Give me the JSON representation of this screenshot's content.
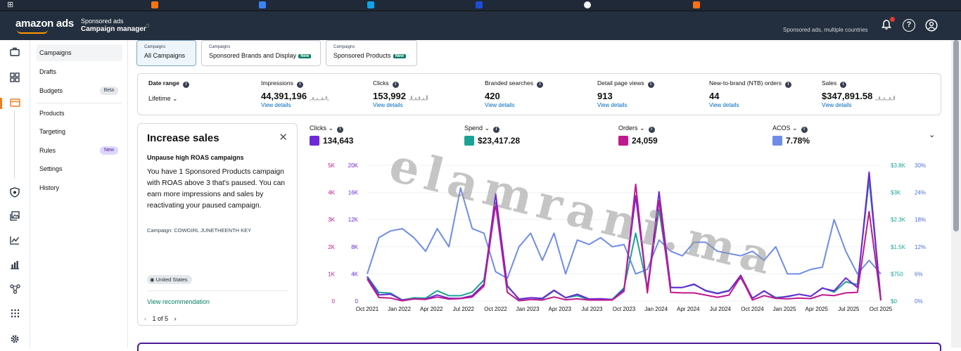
{
  "header": {
    "logo_text": "amazon ads",
    "app_line1": "Sponsored ads",
    "app_line2": "Campaign manager",
    "account_text": "Sponsored ads, multiple countries",
    "help_glyph": "?"
  },
  "sidebar": {
    "items": [
      {
        "label": "Campaigns"
      },
      {
        "label": "Drafts"
      },
      {
        "label": "Budgets",
        "badge": "Beta"
      },
      {
        "label": "Products"
      },
      {
        "label": "Targeting"
      },
      {
        "label": "Rules",
        "badge": "New"
      },
      {
        "label": "Settings"
      },
      {
        "label": "History"
      }
    ]
  },
  "tabs": [
    {
      "small": "Campaigns",
      "label": "All Campaigns"
    },
    {
      "small": "Campaigns",
      "label": "Sponsored Brands and Display",
      "tag": "New"
    },
    {
      "small": "Campaigns",
      "label": "Sponsored Products",
      "tag": "New"
    }
  ],
  "metrics": {
    "date_range": {
      "label": "Date range",
      "value": "Lifetime"
    },
    "items": [
      {
        "label": "Impressions",
        "value": "44,391,196",
        "link": "View details"
      },
      {
        "label": "Clicks",
        "value": "153,992",
        "link": "View details"
      },
      {
        "label": "Branded searches",
        "value": "420",
        "link": "View details"
      },
      {
        "label": "Detail page views",
        "value": "913",
        "link": "View details"
      },
      {
        "label": "New-to-brand (NTB) orders",
        "value": "44",
        "link": "View details"
      },
      {
        "label": "Sales",
        "value": "$347,891.58",
        "link": "View details"
      }
    ]
  },
  "recommendation": {
    "title": "Increase sales",
    "subtitle": "Unpause high ROAS campaigns",
    "body": "You have 1 Sponsored Products campaign with ROAS above 3 that's paused. You can earn more impressions and sales by reactivating your paused campaign.",
    "campaign": "Campaign: COWGIRL JUNETHEENTH KEY",
    "region": "United States",
    "action": "View recommendation",
    "pager": "1 of 5"
  },
  "chart_selectors": [
    {
      "label": "Clicks",
      "value": "134,643",
      "color": "#6d28d9"
    },
    {
      "label": "Spend",
      "value": "$23,417.28",
      "color": "#1aa394"
    },
    {
      "label": "Orders",
      "value": "24,059",
      "color": "#c2188f"
    },
    {
      "label": "ACOS",
      "value": "7.78%",
      "color": "#6f8ce8"
    }
  ],
  "watermark": "elamrani.ma",
  "chart_data": {
    "type": "line",
    "x_labels": [
      "Oct 2021",
      "Jan 2022",
      "Apr 2022",
      "Jul 2022",
      "Oct 2022",
      "Jan 2023",
      "Apr 2023",
      "Jul 2023",
      "Oct 2023",
      "Jan 2024",
      "Apr 2024",
      "Jul 2024",
      "Oct 2024",
      "Jan 2025",
      "Apr 2025",
      "Jul 2025",
      "Oct 2025"
    ],
    "axes": {
      "orders_left": {
        "ticks": [
          "0",
          "1K",
          "2K",
          "3K",
          "4K",
          "5K"
        ],
        "color": "#c2188f",
        "range": [
          0,
          5000
        ]
      },
      "clicks_left": {
        "ticks": [
          "0",
          "4K",
          "8K",
          "12K",
          "16K",
          "20K"
        ],
        "color": "#6d28d9",
        "range": [
          0,
          20000
        ]
      },
      "spend_right": {
        "ticks": [
          "$0",
          "$750",
          "$1.5K",
          "$2.3K",
          "$3K",
          "$3.8K"
        ],
        "color": "#1aa394",
        "range": [
          0,
          3800
        ]
      },
      "acos_right": {
        "ticks": [
          "0%",
          "6%",
          "12%",
          "18%",
          "24%",
          "30%"
        ],
        "color": "#4f6fd8",
        "range": [
          0,
          30
        ]
      }
    },
    "series": [
      {
        "name": "Clicks",
        "color": "#6d28d9",
        "axis": "clicks_left",
        "values": [
          3500,
          900,
          1000,
          150,
          300,
          300,
          900,
          400,
          400,
          800,
          2500,
          15800,
          2200,
          300,
          500,
          400,
          1600,
          500,
          1000,
          300,
          350,
          200,
          1700,
          15500,
          1500,
          16100,
          2000,
          2000,
          2500,
          1500,
          1100,
          1500,
          3800,
          400,
          1500,
          400,
          700,
          1000,
          700,
          1900,
          1500,
          3400,
          2000,
          19000,
          200
        ]
      },
      {
        "name": "Spend",
        "color": "#1aa394",
        "axis": "spend_right",
        "values": [
          690,
          240,
          220,
          30,
          90,
          80,
          290,
          150,
          150,
          250,
          590,
          2750,
          440,
          40,
          90,
          60,
          290,
          90,
          150,
          40,
          60,
          50,
          370,
          1900,
          380,
          2560,
          380,
          380,
          460,
          300,
          220,
          300,
          650,
          80,
          280,
          100,
          120,
          190,
          130,
          370,
          250,
          540,
          460,
          3400,
          40
        ]
      },
      {
        "name": "Orders",
        "color": "#c2188f",
        "axis": "orders_left",
        "values": [
          810,
          130,
          110,
          10,
          80,
          60,
          150,
          70,
          90,
          150,
          550,
          3580,
          320,
          10,
          60,
          40,
          150,
          50,
          80,
          40,
          40,
          40,
          360,
          4300,
          300,
          3700,
          320,
          300,
          300,
          220,
          140,
          220,
          900,
          40,
          200,
          100,
          80,
          110,
          90,
          230,
          200,
          300,
          320,
          3300,
          20
        ]
      },
      {
        "name": "ACOS",
        "color": "#6f8ce8",
        "axis": "acos_right",
        "values": [
          6.0,
          14.0,
          15.5,
          16.0,
          14.0,
          11.0,
          16.0,
          12.0,
          25.0,
          16.0,
          15.0,
          6.5,
          5.0,
          12.0,
          15.0,
          9.0,
          15.0,
          6.0,
          13.5,
          12.5,
          14.0,
          12.0,
          12.5,
          6.0,
          7.0,
          13.5,
          11.0,
          10.0,
          13.0,
          13.0,
          11.0,
          10.5,
          10.0,
          11.0,
          9.0,
          12.0,
          6.0,
          6.0,
          7.0,
          7.5,
          18.0,
          11.0,
          6.0,
          9.0,
          6.0
        ]
      }
    ]
  }
}
